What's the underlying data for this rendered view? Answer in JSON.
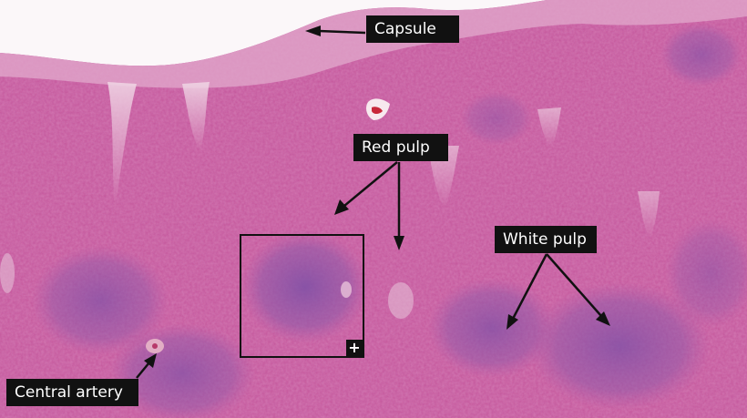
{
  "image": {
    "subject": "spleen histology micrograph",
    "stain_colors": {
      "background": "#ffffff",
      "capsule": "#e6b0d0",
      "red_pulp": "#c9508f",
      "white_pulp": "#8a5aa8",
      "trabecula": "#ecc8dc"
    }
  },
  "labels": {
    "capsule": "Capsule",
    "red_pulp": "Red pulp",
    "white_pulp": "White pulp",
    "central_artery": "Central artery"
  },
  "zoom_box": {
    "icon": "plus-icon",
    "symbol": "+"
  }
}
